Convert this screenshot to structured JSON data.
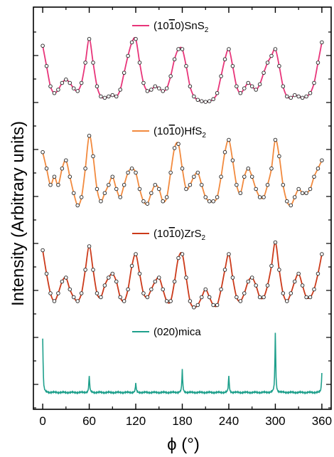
{
  "chart_data": {
    "type": "line",
    "xlabel": "ϕ (°)",
    "ylabel": "Intensity (Arbitrary units)",
    "xlim": [
      -12,
      372
    ],
    "x_ticks": [
      0,
      60,
      120,
      180,
      240,
      300,
      360
    ],
    "grid": false,
    "series": [
      {
        "name": "(10¯10)SnS2",
        "label": {
          "pre": "(10",
          "bar": "1",
          "post": "0)SnS",
          "sub": "2"
        },
        "color": "#e8357a",
        "markers": true,
        "peaks": [
          0,
          60,
          120,
          180,
          240,
          300,
          360
        ],
        "x": [
          0,
          5,
          10,
          15,
          20,
          25,
          30,
          35,
          40,
          45,
          50,
          55,
          60,
          65,
          70,
          75,
          80,
          85,
          90,
          95,
          100,
          105,
          110,
          115,
          120,
          125,
          130,
          135,
          140,
          145,
          150,
          155,
          160,
          165,
          170,
          175,
          180,
          185,
          190,
          195,
          200,
          205,
          210,
          215,
          220,
          225,
          230,
          235,
          240,
          245,
          250,
          255,
          260,
          265,
          270,
          275,
          280,
          285,
          290,
          295,
          300,
          305,
          310,
          315,
          320,
          325,
          330,
          335,
          340,
          345,
          350,
          355,
          360
        ],
        "y": [
          0.85,
          0.55,
          0.25,
          0.15,
          0.2,
          0.3,
          0.35,
          0.3,
          0.22,
          0.18,
          0.3,
          0.6,
          0.95,
          0.6,
          0.25,
          0.1,
          0.08,
          0.1,
          0.12,
          0.1,
          0.2,
          0.45,
          0.7,
          0.9,
          0.95,
          0.6,
          0.3,
          0.18,
          0.2,
          0.25,
          0.22,
          0.18,
          0.22,
          0.4,
          0.65,
          0.8,
          0.8,
          0.55,
          0.25,
          0.1,
          0.05,
          0.03,
          0.02,
          0.03,
          0.06,
          0.15,
          0.4,
          0.65,
          0.8,
          0.55,
          0.25,
          0.15,
          0.22,
          0.3,
          0.25,
          0.2,
          0.28,
          0.45,
          0.6,
          0.7,
          0.8,
          0.55,
          0.25,
          0.1,
          0.08,
          0.12,
          0.1,
          0.08,
          0.1,
          0.15,
          0.3,
          0.6,
          0.9
        ]
      },
      {
        "name": "(10¯10)HfS2",
        "label": {
          "pre": "(10",
          "bar": "1",
          "post": "0)HfS",
          "sub": "2"
        },
        "color": "#f28a3e",
        "markers": true,
        "peaks": [
          0,
          15,
          30,
          60,
          90,
          120,
          150,
          180,
          210,
          240,
          270,
          300,
          330,
          360
        ],
        "x": [
          0,
          5,
          10,
          15,
          20,
          25,
          30,
          35,
          40,
          45,
          50,
          55,
          60,
          65,
          70,
          75,
          80,
          85,
          90,
          95,
          100,
          105,
          110,
          115,
          120,
          125,
          130,
          135,
          140,
          145,
          150,
          155,
          160,
          165,
          170,
          175,
          180,
          185,
          190,
          195,
          200,
          205,
          210,
          215,
          220,
          225,
          230,
          235,
          240,
          245,
          250,
          255,
          260,
          265,
          270,
          275,
          280,
          285,
          290,
          295,
          300,
          305,
          310,
          315,
          320,
          325,
          330,
          335,
          340,
          345,
          350,
          355,
          360
        ],
        "y": [
          0.75,
          0.55,
          0.35,
          0.45,
          0.35,
          0.55,
          0.65,
          0.45,
          0.25,
          0.1,
          0.2,
          0.55,
          0.95,
          0.7,
          0.3,
          0.15,
          0.25,
          0.35,
          0.45,
          0.3,
          0.2,
          0.35,
          0.5,
          0.55,
          0.5,
          0.3,
          0.15,
          0.12,
          0.25,
          0.35,
          0.3,
          0.15,
          0.2,
          0.5,
          0.8,
          0.85,
          0.55,
          0.3,
          0.35,
          0.45,
          0.5,
          0.35,
          0.2,
          0.15,
          0.15,
          0.2,
          0.45,
          0.75,
          0.9,
          0.65,
          0.35,
          0.25,
          0.45,
          0.55,
          0.45,
          0.3,
          0.2,
          0.2,
          0.35,
          0.55,
          0.9,
          0.7,
          0.35,
          0.15,
          0.1,
          0.2,
          0.3,
          0.25,
          0.25,
          0.3,
          0.45,
          0.55,
          0.65
        ]
      },
      {
        "name": "(10¯10)ZrS2",
        "label": {
          "pre": "(10",
          "bar": "1",
          "post": "0)ZrS",
          "sub": "2"
        },
        "color": "#cc3a1a",
        "markers": true,
        "peaks": [
          0,
          30,
          60,
          90,
          120,
          150,
          180,
          210,
          240,
          270,
          300,
          330,
          360
        ],
        "x": [
          0,
          5,
          10,
          15,
          20,
          25,
          30,
          35,
          40,
          45,
          50,
          55,
          60,
          65,
          70,
          75,
          80,
          85,
          90,
          95,
          100,
          105,
          110,
          115,
          120,
          125,
          130,
          135,
          140,
          145,
          150,
          155,
          160,
          165,
          170,
          175,
          180,
          185,
          190,
          195,
          200,
          205,
          210,
          215,
          220,
          225,
          230,
          235,
          240,
          245,
          250,
          255,
          260,
          265,
          270,
          275,
          280,
          285,
          290,
          295,
          300,
          305,
          310,
          315,
          320,
          325,
          330,
          335,
          340,
          345,
          350,
          355,
          360
        ],
        "y": [
          0.85,
          0.55,
          0.3,
          0.2,
          0.3,
          0.45,
          0.5,
          0.35,
          0.25,
          0.2,
          0.3,
          0.6,
          0.9,
          0.6,
          0.3,
          0.25,
          0.4,
          0.5,
          0.55,
          0.45,
          0.25,
          0.2,
          0.35,
          0.65,
          0.8,
          0.55,
          0.3,
          0.25,
          0.35,
          0.45,
          0.5,
          0.35,
          0.2,
          0.2,
          0.45,
          0.75,
          0.8,
          0.5,
          0.2,
          0.12,
          0.15,
          0.25,
          0.35,
          0.25,
          0.15,
          0.15,
          0.35,
          0.6,
          0.8,
          0.5,
          0.25,
          0.2,
          0.3,
          0.45,
          0.5,
          0.4,
          0.25,
          0.25,
          0.4,
          0.65,
          0.95,
          0.6,
          0.3,
          0.2,
          0.3,
          0.45,
          0.55,
          0.4,
          0.25,
          0.25,
          0.35,
          0.55,
          0.8
        ]
      },
      {
        "name": "(020)mica",
        "label": {
          "pre": "(020)mica",
          "bar": "",
          "post": "",
          "sub": ""
        },
        "color": "#1fa08c",
        "markers": false,
        "peaks": [
          0,
          60,
          120,
          180,
          240,
          300,
          360
        ],
        "peak_heights": [
          0.9,
          0.28,
          0.15,
          0.38,
          0.28,
          1.0,
          0.32
        ]
      }
    ]
  }
}
